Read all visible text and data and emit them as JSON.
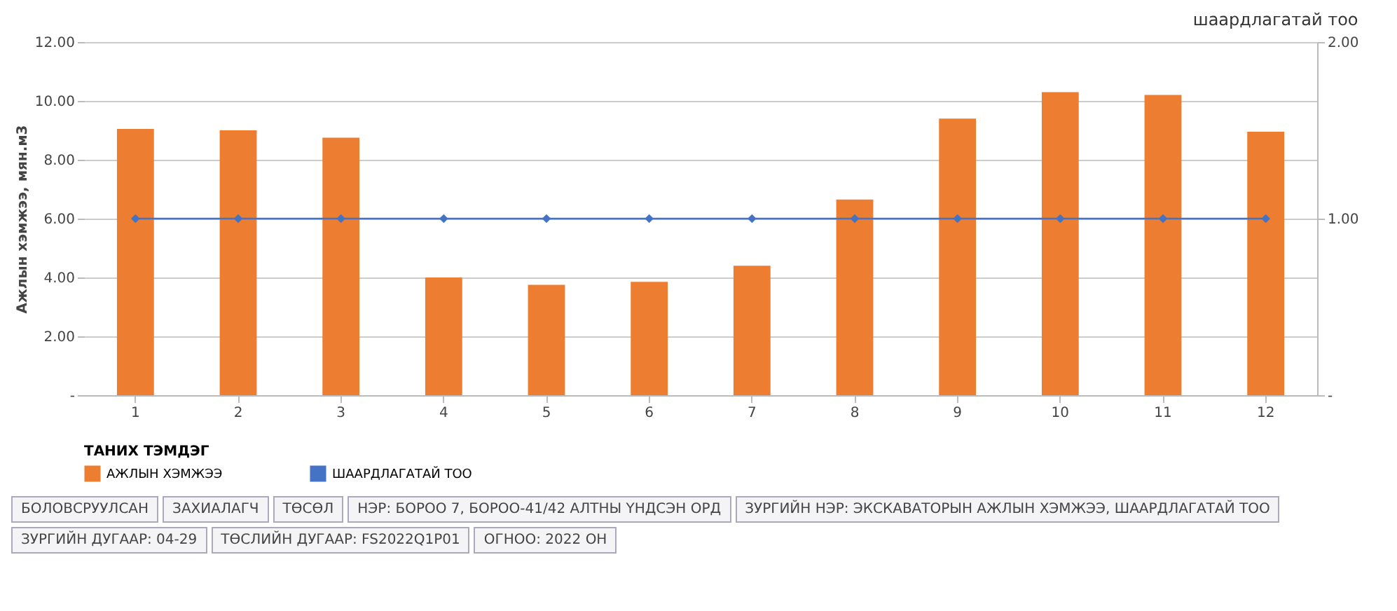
{
  "chart_data": {
    "type": "bar",
    "title": "шаардлагатай тоо",
    "ylabel": "Ажлын хэмжээ, мян.м3",
    "legend_title": "ТАНИХ ТЭМДЭГ",
    "categories": [
      "1",
      "2",
      "3",
      "4",
      "5",
      "6",
      "7",
      "8",
      "9",
      "10",
      "11",
      "12"
    ],
    "series": [
      {
        "name": "АЖЛЫН ХЭМЖЭЭ",
        "color": "#ed7d31",
        "values": [
          9.05,
          9.0,
          8.75,
          4.0,
          3.75,
          3.85,
          4.4,
          6.65,
          9.4,
          10.3,
          10.2,
          8.95
        ]
      },
      {
        "name": "ШААРДЛАГАТАЙ ТОО",
        "type": "line",
        "axis": "y2",
        "color": "#4472c4",
        "values": [
          1,
          1,
          1,
          1,
          1,
          1,
          1,
          1,
          1,
          1,
          1,
          1
        ]
      }
    ],
    "ylim": [
      0,
      12
    ],
    "yticks": [
      {
        "value": 0,
        "label": "-"
      },
      {
        "value": 2,
        "label": "2.00"
      },
      {
        "value": 4,
        "label": "4.00"
      },
      {
        "value": 6,
        "label": "6.00"
      },
      {
        "value": 8,
        "label": "8.00"
      },
      {
        "value": 10,
        "label": "10.00"
      },
      {
        "value": 12,
        "label": "12.00"
      }
    ],
    "y2lim": [
      0,
      2
    ],
    "y2ticks": [
      {
        "value": 0,
        "label": "-"
      },
      {
        "value": 1,
        "label": "1.00"
      },
      {
        "value": 2,
        "label": "2.00"
      }
    ],
    "grid": "y",
    "legend": "bottom",
    "marker": "diamond",
    "annotations": [
      "БОЛОВСРУУЛСАН",
      "ЗАХИАЛАГЧ",
      "ТӨСӨЛ",
      "НЭР: БОРОО 7, БОРОО-41/42 АЛТНЫ ҮНДСЭН ОРД",
      "ЗУРГИЙН НЭР: ЭКСКАВАТОРЫН АЖЛЫН ХЭМЖЭЭ, ШААРДЛАГАТАЙ ТОО",
      "ЗУРГИЙН ДУГААР: 04-29",
      "ТӨСЛИЙН ДУГААР: FS2022Q1P01",
      "ОГНОО: 2022 ОН"
    ]
  }
}
